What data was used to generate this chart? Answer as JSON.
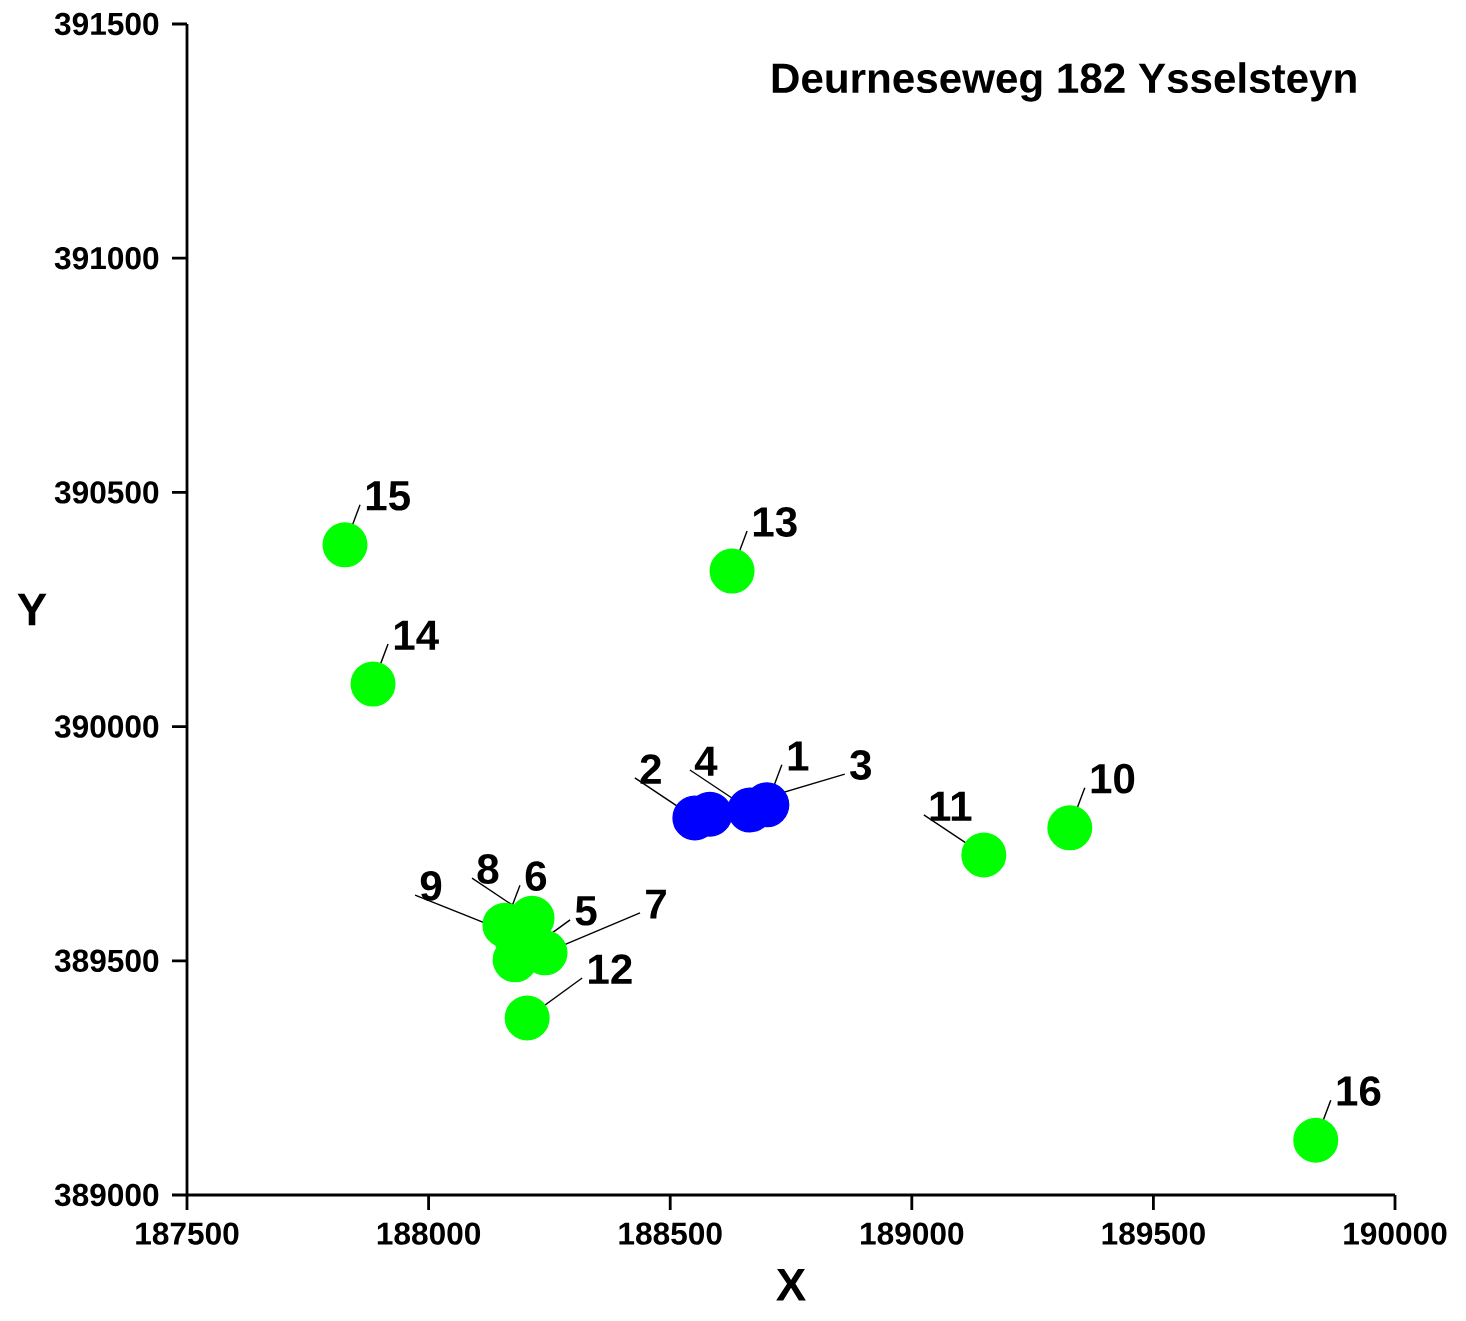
{
  "chart_data": {
    "type": "scatter",
    "title": "Deurneseweg 182 Ysselsteyn",
    "xlabel": "X",
    "ylabel": "Y",
    "xlim": [
      187500,
      190000
    ],
    "ylim": [
      389000,
      391500
    ],
    "xticks": [
      187500,
      188000,
      188500,
      189000,
      189500,
      190000
    ],
    "yticks": [
      389000,
      389500,
      390000,
      390500,
      391000,
      391500
    ],
    "marker": "circle",
    "series": [
      {
        "color": "#0000ff",
        "x": [
          188700,
          188551,
          188582,
          188665
        ],
        "values": [
          389833,
          389805,
          389813,
          389822
        ]
      },
      {
        "color": "#00ff00",
        "x": [
          188179,
          188158,
          188241,
          188214,
          188179,
          189327,
          189149,
          188204,
          188628,
          187885,
          187827,
          189836
        ],
        "values": [
          389502,
          389576,
          389517,
          389591,
          389555,
          389784,
          389726,
          389378,
          390332,
          390091,
          390388,
          389117
        ]
      }
    ],
    "annotations": [
      {
        "text": "1",
        "x": 188700,
        "y": 389833
      },
      {
        "text": "2",
        "x": 188551,
        "y": 389805
      },
      {
        "text": "3",
        "x": 188582,
        "y": 389813
      },
      {
        "text": "4",
        "x": 188665,
        "y": 389822
      },
      {
        "text": "5",
        "x": 188179,
        "y": 389502
      },
      {
        "text": "6",
        "x": 188158,
        "y": 389576
      },
      {
        "text": "7",
        "x": 188241,
        "y": 389517
      },
      {
        "text": "8",
        "x": 188214,
        "y": 389591
      },
      {
        "text": "9",
        "x": 188179,
        "y": 389555
      },
      {
        "text": "10",
        "x": 189327,
        "y": 389784
      },
      {
        "text": "11",
        "x": 189149,
        "y": 389726
      },
      {
        "text": "12",
        "x": 188204,
        "y": 389378
      },
      {
        "text": "13",
        "x": 188628,
        "y": 390332
      },
      {
        "text": "14",
        "x": 187885,
        "y": 390091
      },
      {
        "text": "15",
        "x": 187827,
        "y": 390388
      },
      {
        "text": "16",
        "x": 189836,
        "y": 389117
      }
    ]
  }
}
